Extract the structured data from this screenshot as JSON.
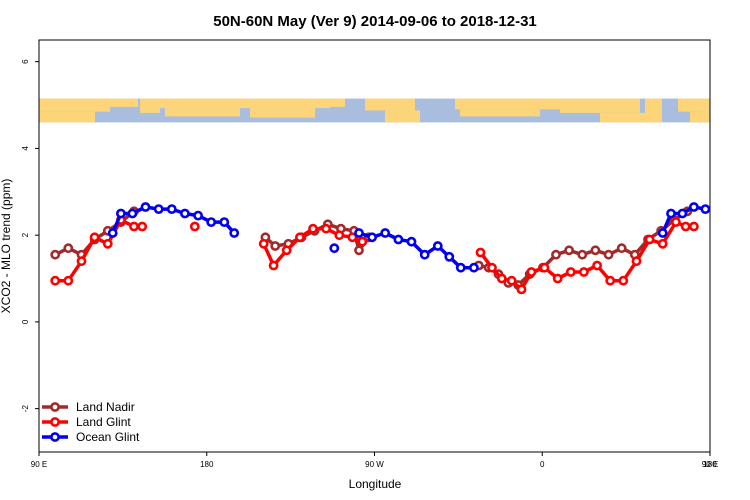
{
  "chart_data": {
    "type": "line",
    "title": "50N-60N May (Ver 9)   2014-09-06 to 2018-12-31",
    "xlabel": "Longitude",
    "ylabel": "XCO2 - MLO trend (ppm)",
    "xlim": [
      90,
      450
    ],
    "ylim": [
      -3.0,
      6.5
    ],
    "x_ticks": [
      {
        "value": 90,
        "label": "90 E"
      },
      {
        "value": 180,
        "label": "180"
      },
      {
        "value": 270,
        "label": "90 W"
      },
      {
        "value": 360,
        "label": "0"
      },
      {
        "value": 450,
        "label": "90 E"
      },
      {
        "value": 540,
        "label": "180"
      }
    ],
    "y_ticks": [
      {
        "value": -2,
        "label": "-2"
      },
      {
        "value": 0,
        "label": "0"
      },
      {
        "value": 2,
        "label": "2"
      },
      {
        "value": 4,
        "label": "4"
      },
      {
        "value": 6,
        "label": "6"
      }
    ],
    "map_strip": {
      "ymin": 4.6,
      "ymax": 5.15,
      "ocean_color": "#a9bedf",
      "land_color": "#fcd57a"
    },
    "legend_position": "bottom-left",
    "series": [
      {
        "name": "Land Nadir",
        "color": "#a12a2a",
        "segments": [
          [
            [
              95,
              1.55
            ],
            [
              103,
              1.7
            ],
            [
              111,
              1.55
            ],
            [
              119,
              1.9
            ],
            [
              127,
              2.1
            ],
            [
              135,
              2.3
            ],
            [
              143,
              2.55
            ]
          ],
          [
            [
              223,
              1.95
            ],
            [
              229,
              1.75
            ],
            [
              237,
              1.8
            ],
            [
              245,
              1.95
            ],
            [
              253,
              2.1
            ],
            [
              261,
              2.25
            ],
            [
              269,
              2.15
            ],
            [
              277,
              2.1
            ],
            [
              280,
              1.65
            ],
            [
              286,
              1.95
            ]
          ],
          [
            [
              353,
              1.3
            ],
            [
              359,
              1.25
            ],
            [
              365,
              1.1
            ],
            [
              371,
              0.9
            ],
            [
              377,
              0.85
            ],
            [
              384,
              1.1
            ],
            [
              392,
              1.25
            ],
            [
              400,
              1.55
            ],
            [
              408,
              1.65
            ],
            [
              416,
              1.55
            ],
            [
              424,
              1.65
            ],
            [
              432,
              1.55
            ],
            [
              440,
              1.7
            ],
            [
              448,
              1.55
            ],
            [
              456,
              1.9
            ],
            [
              464,
              2.1
            ],
            [
              472,
              2.35
            ],
            [
              480,
              2.55
            ]
          ]
        ]
      },
      {
        "name": "Land Glint",
        "color": "#ff0000",
        "segments": [
          [
            [
              95,
              0.95
            ],
            [
              103,
              0.95
            ],
            [
              111,
              1.4
            ],
            [
              119,
              1.95
            ],
            [
              127,
              1.8
            ],
            [
              135,
              2.35
            ],
            [
              143,
              2.2
            ],
            [
              148,
              2.2
            ]
          ],
          [
            [
              180,
              2.2
            ]
          ],
          [
            [
              222,
              1.8
            ],
            [
              228,
              1.3
            ],
            [
              236,
              1.65
            ],
            [
              244,
              1.95
            ],
            [
              252,
              2.15
            ],
            [
              260,
              2.15
            ],
            [
              268,
              2.0
            ],
            [
              276,
              1.95
            ],
            [
              282,
              1.85
            ]
          ],
          [
            [
              354,
              1.6
            ],
            [
              361,
              1.25
            ],
            [
              367,
              1.0
            ],
            [
              373,
              0.95
            ],
            [
              379,
              0.75
            ],
            [
              385,
              1.15
            ],
            [
              393,
              1.25
            ],
            [
              401,
              1.0
            ],
            [
              409,
              1.15
            ],
            [
              417,
              1.15
            ],
            [
              425,
              1.3
            ],
            [
              433,
              0.95
            ],
            [
              441,
              0.95
            ],
            [
              449,
              1.4
            ],
            [
              457,
              1.9
            ],
            [
              465,
              1.8
            ],
            [
              473,
              2.3
            ],
            [
              479,
              2.2
            ],
            [
              484,
              2.2
            ]
          ]
        ]
      },
      {
        "name": "Ocean Glint",
        "color": "#0000ee",
        "segments": [
          [
            [
              130,
              2.05
            ],
            [
              135,
              2.5
            ],
            [
              142,
              2.5
            ],
            [
              150,
              2.65
            ],
            [
              158,
              2.6
            ],
            [
              166,
              2.6
            ],
            [
              174,
              2.5
            ],
            [
              182,
              2.45
            ],
            [
              190,
              2.3
            ],
            [
              198,
              2.3
            ],
            [
              204,
              2.05
            ]
          ],
          [
            [
              265,
              1.7
            ]
          ],
          [
            [
              280,
              2.05
            ],
            [
              288,
              1.95
            ],
            [
              296,
              2.05
            ],
            [
              304,
              1.9
            ],
            [
              312,
              1.85
            ],
            [
              320,
              1.55
            ],
            [
              328,
              1.75
            ],
            [
              335,
              1.5
            ],
            [
              342,
              1.25
            ],
            [
              350,
              1.25
            ]
          ],
          [
            [
              465,
              2.05
            ],
            [
              470,
              2.5
            ],
            [
              477,
              2.5
            ],
            [
              484,
              2.65
            ],
            [
              491,
              2.6
            ]
          ]
        ]
      }
    ]
  }
}
